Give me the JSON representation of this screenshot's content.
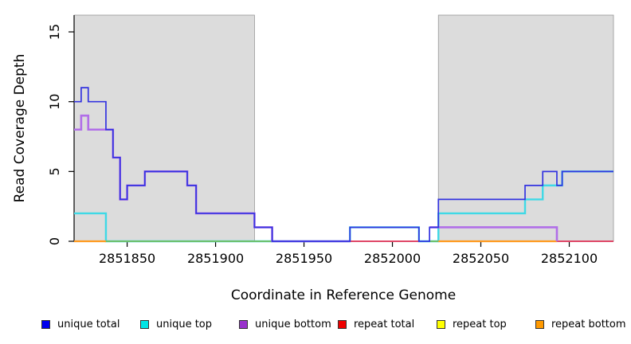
{
  "chart_data": {
    "type": "line",
    "subtype": "step-coverage-plot",
    "title": "",
    "xlabel": "Coordinate in Reference Genome",
    "ylabel": "Read Coverage Depth",
    "xlim": [
      2851820,
      2852125
    ],
    "ylim": [
      0,
      16.2
    ],
    "x_ticks": [
      2851850,
      2851900,
      2851950,
      2852000,
      2852050,
      2852100
    ],
    "y_ticks": [
      0,
      5,
      10,
      15
    ],
    "grid": false,
    "legend_position": "bottom",
    "shade_color": "#dcdcdc",
    "shade_border_color": "#969696",
    "shaded_regions": [
      [
        2851820,
        2851922
      ],
      [
        2852026,
        2852125
      ]
    ],
    "series": [
      {
        "name": "unique top",
        "line_color": "#3fd9e6",
        "line_width": 2.4,
        "segments": [
          {
            "steps": [
              [
                2851820,
                2
              ],
              [
                2851838,
                0
              ],
              [
                2851976,
                1
              ],
              [
                2852015,
                0
              ],
              [
                2852026,
                2
              ],
              [
                2852075,
                3
              ],
              [
                2852085,
                4
              ],
              [
                2852096,
                5
              ]
            ],
            "end": 2852125
          }
        ]
      },
      {
        "name": "unlabeled green zero line",
        "line_color": "#6cc06c",
        "line_width": 2.0,
        "segments": [
          {
            "steps": [
              [
                2851838,
                0
              ]
            ],
            "end": 2851932
          },
          {
            "steps": [
              [
                2852021,
                0
              ]
            ],
            "end": 2852026
          }
        ]
      },
      {
        "name": "repeat bottom",
        "line_color": "#ff9a1f",
        "line_width": 2.2,
        "segments": [
          {
            "steps": [
              [
                2851820,
                0
              ]
            ],
            "end": 2851838
          },
          {
            "steps": [
              [
                2852026,
                0
              ]
            ],
            "end": 2852093
          }
        ]
      },
      {
        "name": "repeat total",
        "line_color": "#df4767",
        "line_width": 2.0,
        "segments": [
          {
            "steps": [
              [
                2851976,
                0
              ]
            ],
            "end": 2852015
          },
          {
            "steps": [
              [
                2852093,
                0
              ]
            ],
            "end": 2852125
          }
        ]
      },
      {
        "name": "repeat top",
        "line_color": "#ffff00",
        "line_width": 2.0,
        "segments": []
      },
      {
        "name": "unique bottom",
        "line_color": "#b16ee8",
        "line_width": 2.6,
        "segments": [
          {
            "steps": [
              [
                2851820,
                8
              ],
              [
                2851824,
                9
              ],
              [
                2851828,
                8
              ],
              [
                2851842,
                6
              ],
              [
                2851846,
                3
              ],
              [
                2851850,
                4
              ],
              [
                2851860,
                5
              ],
              [
                2851884,
                4
              ],
              [
                2851889,
                2
              ],
              [
                2851922,
                1
              ],
              [
                2851932,
                0
              ]
            ],
            "end": 2851976
          },
          {
            "steps": [
              [
                2852021,
                1
              ],
              [
                2852093,
                0
              ]
            ],
            "end": 2852093
          }
        ]
      },
      {
        "name": "unique total",
        "line_color": "#3333e0",
        "line_width": 1.7,
        "segments": [
          {
            "steps": [
              [
                2851820,
                10
              ],
              [
                2851824,
                11
              ],
              [
                2851828,
                10
              ],
              [
                2851838,
                8
              ],
              [
                2851842,
                6
              ],
              [
                2851846,
                3
              ],
              [
                2851850,
                4
              ],
              [
                2851860,
                5
              ],
              [
                2851884,
                4
              ],
              [
                2851889,
                2
              ],
              [
                2851922,
                1
              ],
              [
                2851932,
                0
              ],
              [
                2851976,
                1
              ],
              [
                2852015,
                0
              ],
              [
                2852021,
                1
              ],
              [
                2852026,
                3
              ],
              [
                2852075,
                4
              ],
              [
                2852085,
                5
              ],
              [
                2852093,
                4
              ],
              [
                2852096,
                5
              ]
            ],
            "end": 2852125
          }
        ]
      }
    ],
    "legend": [
      {
        "label": "unique total",
        "color": "#0000ee"
      },
      {
        "label": "unique top",
        "color": "#00e5e5"
      },
      {
        "label": "unique bottom",
        "color": "#9932cc"
      },
      {
        "label": "repeat total",
        "color": "#ee0000"
      },
      {
        "label": "repeat top",
        "color": "#ffff00"
      },
      {
        "label": "repeat bottom",
        "color": "#ff9900"
      }
    ]
  },
  "axes": {
    "x_title": "Coordinate in Reference Genome",
    "y_title": "Read Coverage Depth"
  }
}
